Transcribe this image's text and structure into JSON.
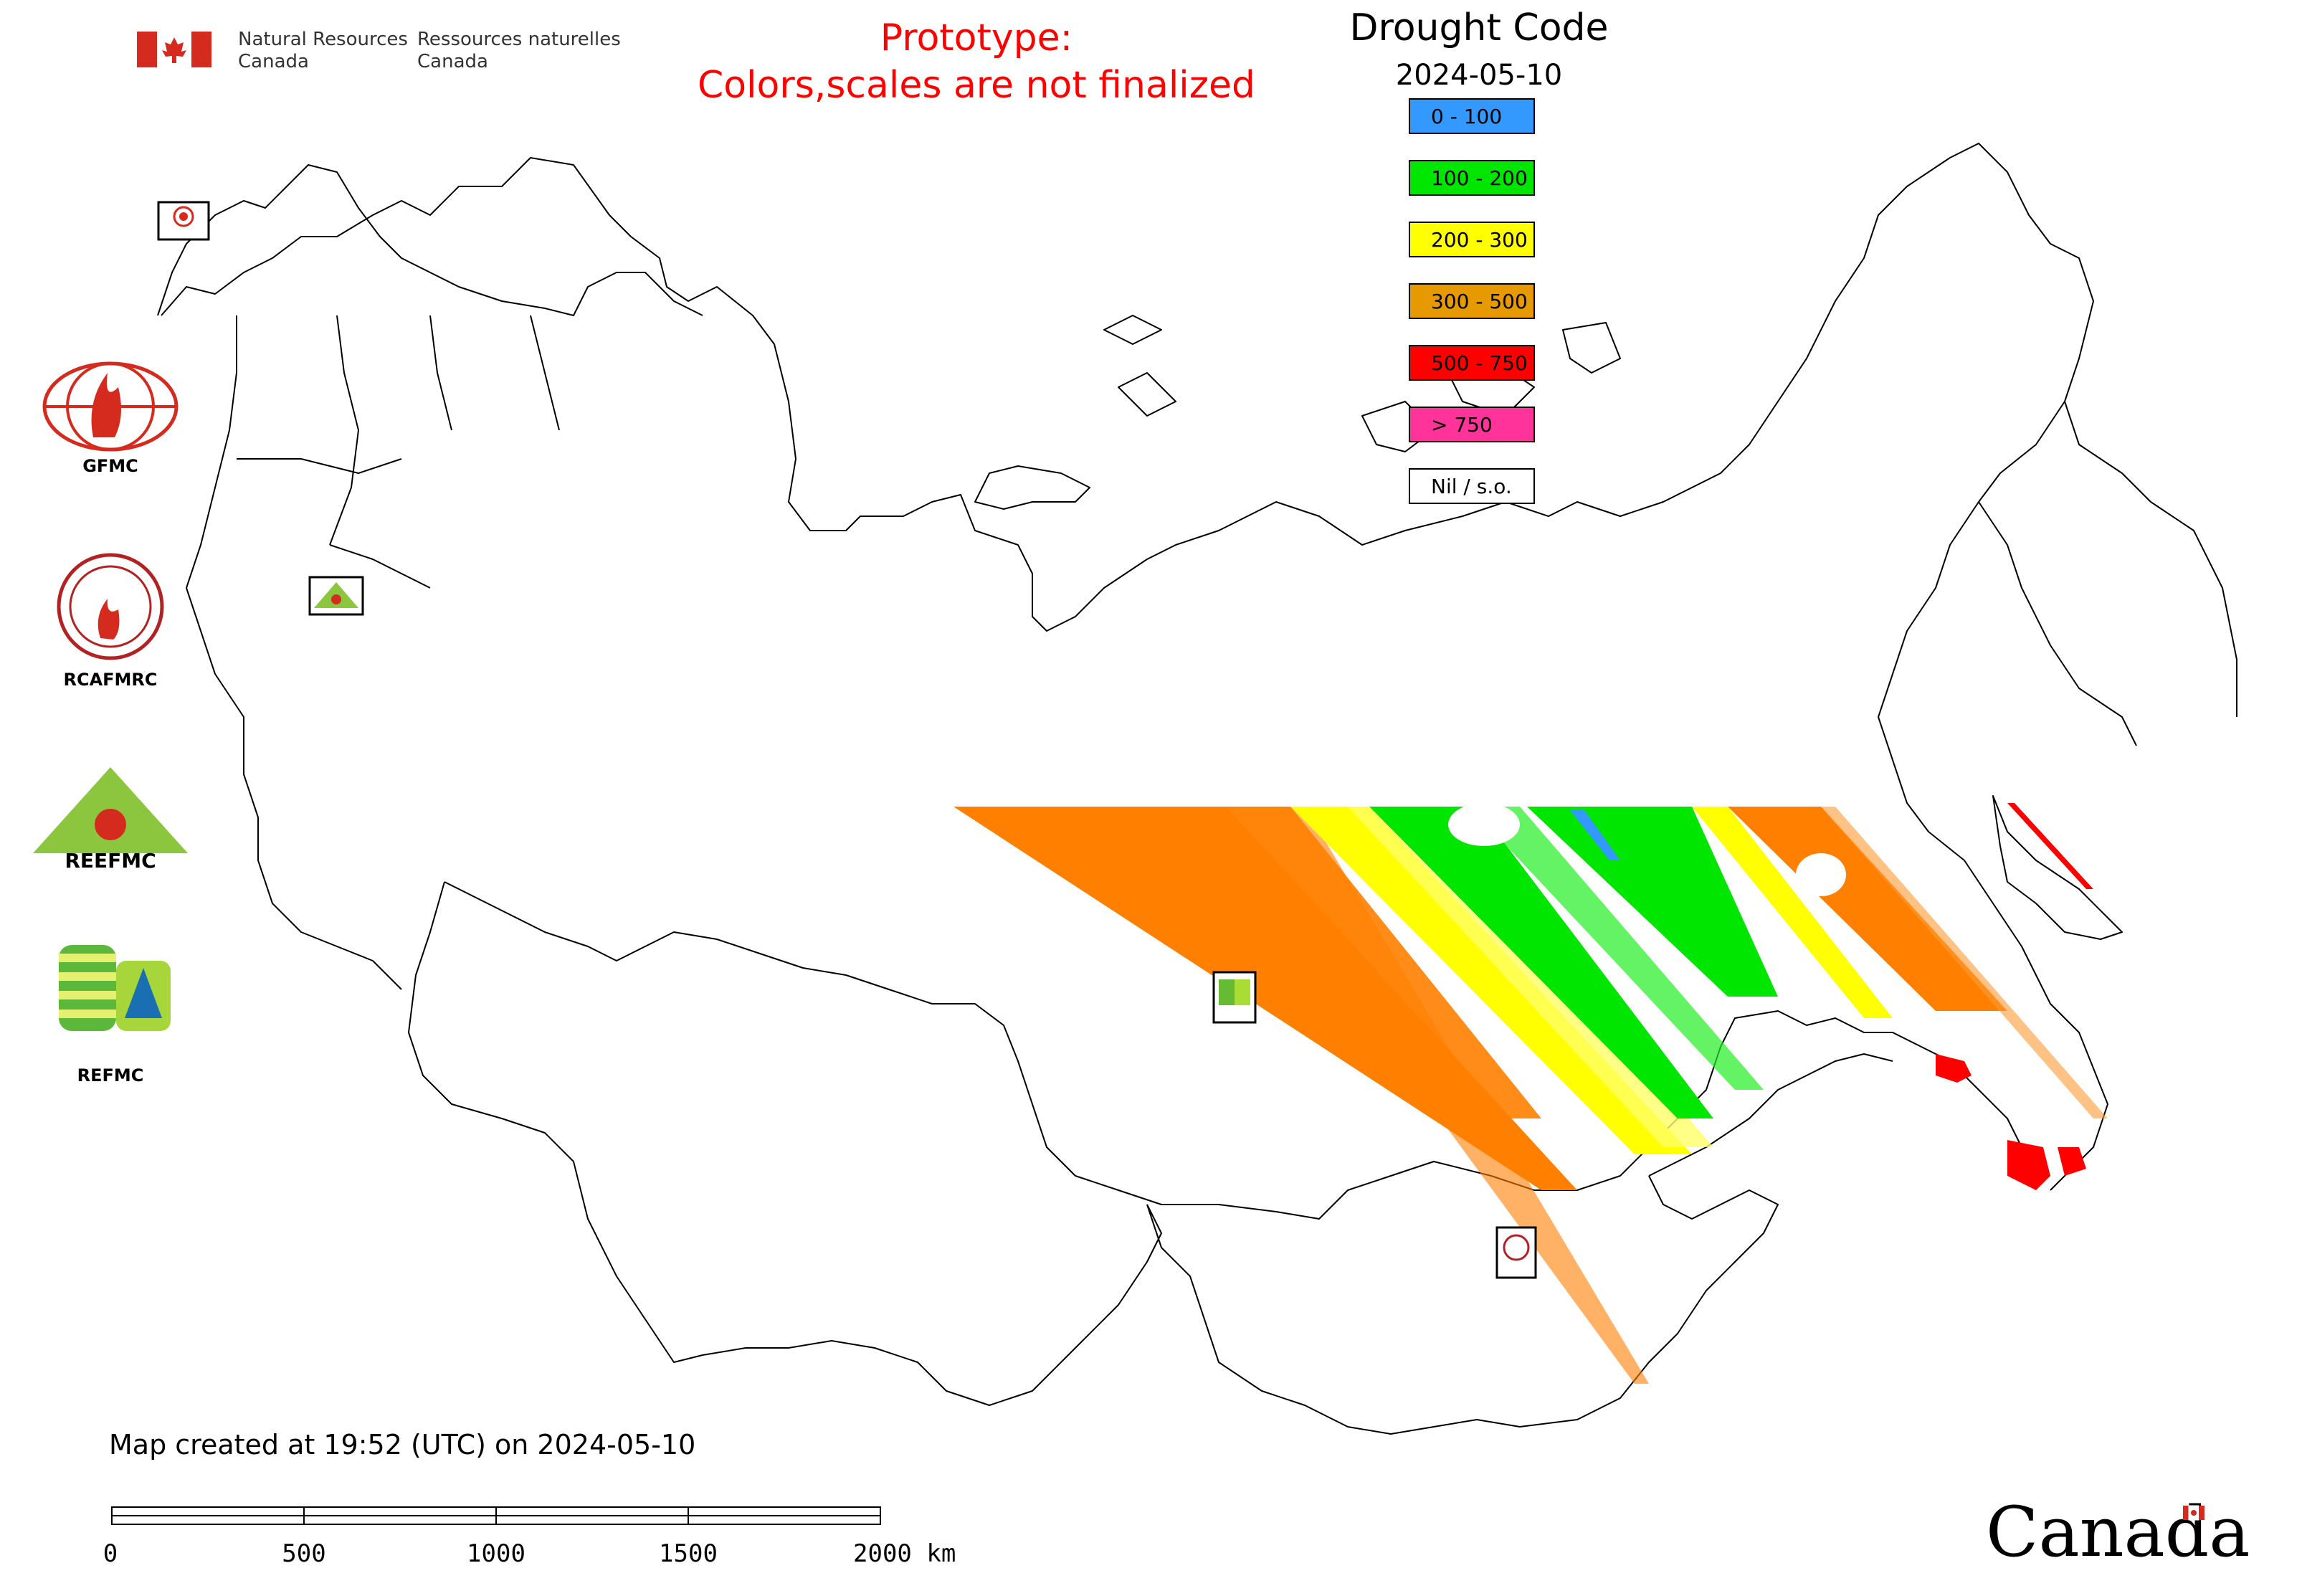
{
  "header": {
    "nrcan_en_line1": "Natural Resources",
    "nrcan_en_line2": "Canada",
    "nrcan_fr_line1": "Ressources naturelles",
    "nrcan_fr_line2": "Canada",
    "prototype_line1": "Prototype:",
    "prototype_line2": "Colors,scales are not finalized"
  },
  "legend": {
    "title": "Drought Code",
    "date": "2024-05-10",
    "items": [
      {
        "label": "0 - 100",
        "color": "#3399ff"
      },
      {
        "label": "100 - 200",
        "color": "#00e600"
      },
      {
        "label": "200 - 300",
        "color": "#ffff00"
      },
      {
        "label": "300 - 500",
        "color": "#e69900"
      },
      {
        "label": "500 - 750",
        "color": "#ff0000"
      },
      {
        "label": "> 750",
        "color": "#ff3399"
      },
      {
        "label": "Nil / s.o.",
        "color": "#ffffff"
      }
    ]
  },
  "partners": [
    {
      "name": "GFMC",
      "icon": "gfmc-logo"
    },
    {
      "name": "RCAFMRC",
      "icon": "rcafmrc-logo"
    },
    {
      "name": "",
      "icon": "reefmc-logo",
      "logo_text": "REEFMC"
    },
    {
      "name": "REFMC",
      "icon": "refmc-logo"
    }
  ],
  "footer": {
    "created": "Map created at 19:52 (UTC) on 2024-05-10",
    "scale_labels": [
      "0",
      "500",
      "1000",
      "1500",
      "2000 km"
    ],
    "wordmark": "Canada"
  },
  "colors": {
    "flag_red": "#d52b1e",
    "prototype_red": "#ff0000",
    "outline": "#000000"
  }
}
